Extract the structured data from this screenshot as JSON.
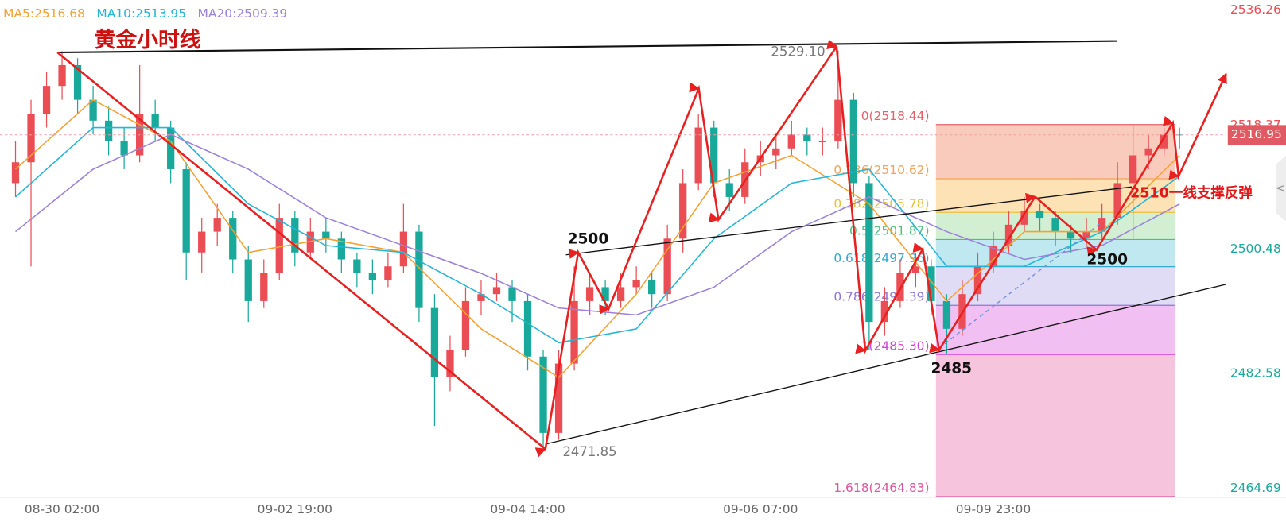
{
  "chart_data": {
    "type": "candlestick",
    "title": "黄金小时线",
    "ylim": [
      2464.71,
      2536.38
    ],
    "yticks": [
      2464.69,
      2482.58,
      2500.48,
      2518.37,
      2536.26
    ],
    "xlim": [
      -1,
      78
    ],
    "xticks": [
      {
        "value": 3,
        "label": "08-30 02:00"
      },
      {
        "value": 18,
        "label": "09-02 19:00"
      },
      {
        "value": 33,
        "label": "09-04 14:00"
      },
      {
        "value": 48,
        "label": "09-06 07:00"
      },
      {
        "value": 63,
        "label": "09-09 23:00"
      }
    ],
    "up_color": "#eb4d55",
    "down_color": "#18a99a",
    "ohlc": [
      [
        2510,
        2516,
        2508,
        2513
      ],
      [
        2513,
        2522,
        2498,
        2520
      ],
      [
        2520,
        2526,
        2518,
        2524
      ],
      [
        2524,
        2529,
        2522,
        2527
      ],
      [
        2527,
        2528,
        2520,
        2522
      ],
      [
        2522,
        2524,
        2517,
        2519
      ],
      [
        2519,
        2521,
        2514,
        2516
      ],
      [
        2516,
        2518,
        2512,
        2514
      ],
      [
        2514,
        2527,
        2513,
        2520
      ],
      [
        2520,
        2522,
        2516,
        2518
      ],
      [
        2518,
        2519,
        2510,
        2512
      ],
      [
        2512,
        2513,
        2496,
        2500
      ],
      [
        2500,
        2505,
        2497,
        2503
      ],
      [
        2503,
        2507,
        2501,
        2505
      ],
      [
        2505,
        2506,
        2497,
        2499
      ],
      [
        2499,
        2501,
        2490,
        2493
      ],
      [
        2493,
        2499,
        2492,
        2497
      ],
      [
        2497,
        2507,
        2496,
        2505
      ],
      [
        2505,
        2506,
        2498,
        2500
      ],
      [
        2500,
        2505,
        2499,
        2503
      ],
      [
        2503,
        2505,
        2500,
        2502
      ],
      [
        2502,
        2503,
        2497,
        2499
      ],
      [
        2499,
        2500,
        2495,
        2497
      ],
      [
        2497,
        2499,
        2494,
        2496
      ],
      [
        2496,
        2500,
        2495,
        2498
      ],
      [
        2498,
        2507,
        2497,
        2503
      ],
      [
        2503,
        2504,
        2490,
        2492
      ],
      [
        2492,
        2494,
        2475,
        2482
      ],
      [
        2482,
        2488,
        2480,
        2486
      ],
      [
        2486,
        2495,
        2485,
        2493
      ],
      [
        2493,
        2496,
        2491,
        2494
      ],
      [
        2494,
        2497,
        2493,
        2495
      ],
      [
        2495,
        2496,
        2490,
        2493
      ],
      [
        2493,
        2494,
        2483,
        2485
      ],
      [
        2485,
        2486,
        2471.85,
        2474
      ],
      [
        2474,
        2486,
        2473,
        2484
      ],
      [
        2484,
        2498,
        2483,
        2493
      ],
      [
        2493,
        2497,
        2491,
        2495
      ],
      [
        2495,
        2496,
        2491,
        2493
      ],
      [
        2493,
        2497,
        2492,
        2495
      ],
      [
        2495,
        2498,
        2494,
        2496
      ],
      [
        2496,
        2497,
        2492,
        2494
      ],
      [
        2494,
        2504,
        2493,
        2502
      ],
      [
        2502,
        2512,
        2500,
        2510
      ],
      [
        2510,
        2520,
        2509,
        2518
      ],
      [
        2518,
        2519,
        2508,
        2510
      ],
      [
        2510,
        2512,
        2506,
        2508
      ],
      [
        2508,
        2515,
        2507,
        2513
      ],
      [
        2513,
        2516,
        2511,
        2514
      ],
      [
        2514,
        2517,
        2512,
        2515
      ],
      [
        2515,
        2519,
        2514,
        2517
      ],
      [
        2517,
        2518,
        2514,
        2516
      ],
      [
        2516,
        2518,
        2514,
        2516
      ],
      [
        2516,
        2529.1,
        2515,
        2522
      ],
      [
        2522,
        2523,
        2508,
        2510
      ],
      [
        2510,
        2511,
        2486,
        2490
      ],
      [
        2490,
        2495,
        2488,
        2493
      ],
      [
        2493,
        2499,
        2492,
        2497
      ],
      [
        2497,
        2500,
        2495,
        2498
      ],
      [
        2498,
        2499,
        2491,
        2493
      ],
      [
        2493,
        2494,
        2485.3,
        2489
      ],
      [
        2489,
        2496,
        2488,
        2494
      ],
      [
        2494,
        2500,
        2493,
        2498
      ],
      [
        2498,
        2503,
        2497,
        2501
      ],
      [
        2501,
        2506,
        2500,
        2504
      ],
      [
        2504,
        2508,
        2503,
        2506
      ],
      [
        2506,
        2507,
        2503,
        2505
      ],
      [
        2505,
        2506,
        2501,
        2503
      ],
      [
        2503,
        2504,
        2500,
        2502
      ],
      [
        2502,
        2505,
        2501,
        2503
      ],
      [
        2503,
        2507,
        2502,
        2505
      ],
      [
        2505,
        2513,
        2504,
        2510
      ],
      [
        2510,
        2518.44,
        2502,
        2514
      ],
      [
        2514,
        2517,
        2512,
        2515
      ],
      [
        2515,
        2518,
        2514,
        2517
      ],
      [
        2517,
        2518,
        2515,
        2516.95
      ]
    ],
    "ma_x": [
      0,
      5,
      10,
      15,
      20,
      25,
      30,
      35,
      40,
      45,
      50,
      55,
      60,
      65,
      70,
      75
    ],
    "series": [
      {
        "name": "MA5:2516.68",
        "color": "#f5a131",
        "values": [
          2512,
          2522,
          2516,
          2500,
          2502,
          2500,
          2489,
          2482,
          2494,
          2510,
          2514,
          2507,
          2493,
          2503,
          2503,
          2514
        ]
      },
      {
        "name": "MA10:2513.95",
        "color": "#22b5d6",
        "values": [
          2508,
          2518,
          2518,
          2507,
          2501,
          2500,
          2494,
          2487,
          2489,
          2502,
          2510,
          2512,
          2498,
          2498,
          2503,
          2511
        ]
      },
      {
        "name": "MA20:2509.39",
        "color": "#9b80da",
        "values": [
          2503,
          2512,
          2517,
          2512,
          2505,
          2501,
          2497,
          2492,
          2491,
          2495,
          2503,
          2508,
          2503,
          2499,
          2501,
          2507
        ]
      }
    ],
    "last_price": 2516.95,
    "last_price_color": "#e05a64",
    "fib": {
      "x_range": [
        59.3,
        74.7
      ],
      "levels": [
        {
          "label": "0(2518.44)",
          "value": 2518.44,
          "color": "#e65f6a",
          "band": "#f9cbbd"
        },
        {
          "label": "0.236(2510.62)",
          "value": 2510.62,
          "color": "#f0a35a",
          "band": "#fde2b5"
        },
        {
          "label": "0.382(2505.78)",
          "value": 2505.78,
          "color": "#e8c13c",
          "band": "#d2efd3"
        },
        {
          "label": "0.5(2501.87)",
          "value": 2501.87,
          "color": "#4fbf7a",
          "band": "#bfe8f0"
        },
        {
          "label": "0.618(2497.96)",
          "value": 2497.96,
          "color": "#34a9d0",
          "band": "#e0dcf6"
        },
        {
          "label": "0.786(2492.39)",
          "value": 2492.39,
          "color": "#8f74d6",
          "band": "#f1bff2"
        },
        {
          "label": "1(2485.30)",
          "value": 2485.3,
          "color": "#d63fd6",
          "band": "#f6c4dc"
        },
        {
          "label": "1.618(2464.83)",
          "value": 2464.83,
          "color": "#e0559f"
        }
      ]
    },
    "marker_labels": [
      "2529.10",
      "2471.85"
    ],
    "annotations": [
      "2500",
      "2500",
      "2485",
      "2510一线支撑反弹"
    ]
  }
}
